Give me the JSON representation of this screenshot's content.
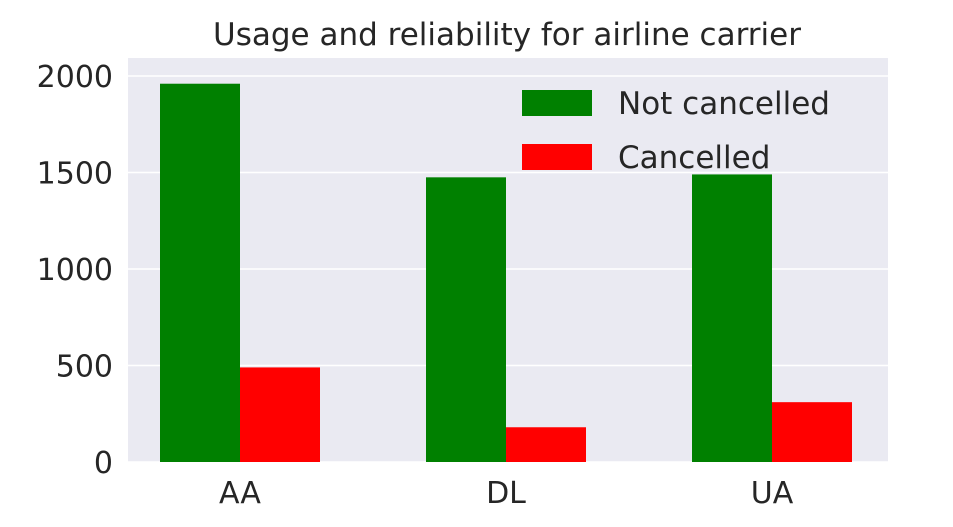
{
  "chart_data": {
    "type": "bar",
    "title": "Usage and reliability for airline carrier",
    "xlabel": "",
    "ylabel": "",
    "categories": [
      "AA",
      "DL",
      "UA"
    ],
    "series": [
      {
        "name": "Not cancelled",
        "values": [
          1960,
          1475,
          1490
        ],
        "color": "#008000"
      },
      {
        "name": "Cancelled",
        "values": [
          490,
          180,
          310
        ],
        "color": "#ff0000"
      }
    ],
    "ylim": [
      0,
      2000
    ],
    "yticks": [
      0,
      500,
      1000,
      1500,
      2000
    ],
    "grid": true,
    "legend_position": "top-right",
    "plot_background": "#eaeaf2",
    "grid_color": "#ffffff"
  }
}
